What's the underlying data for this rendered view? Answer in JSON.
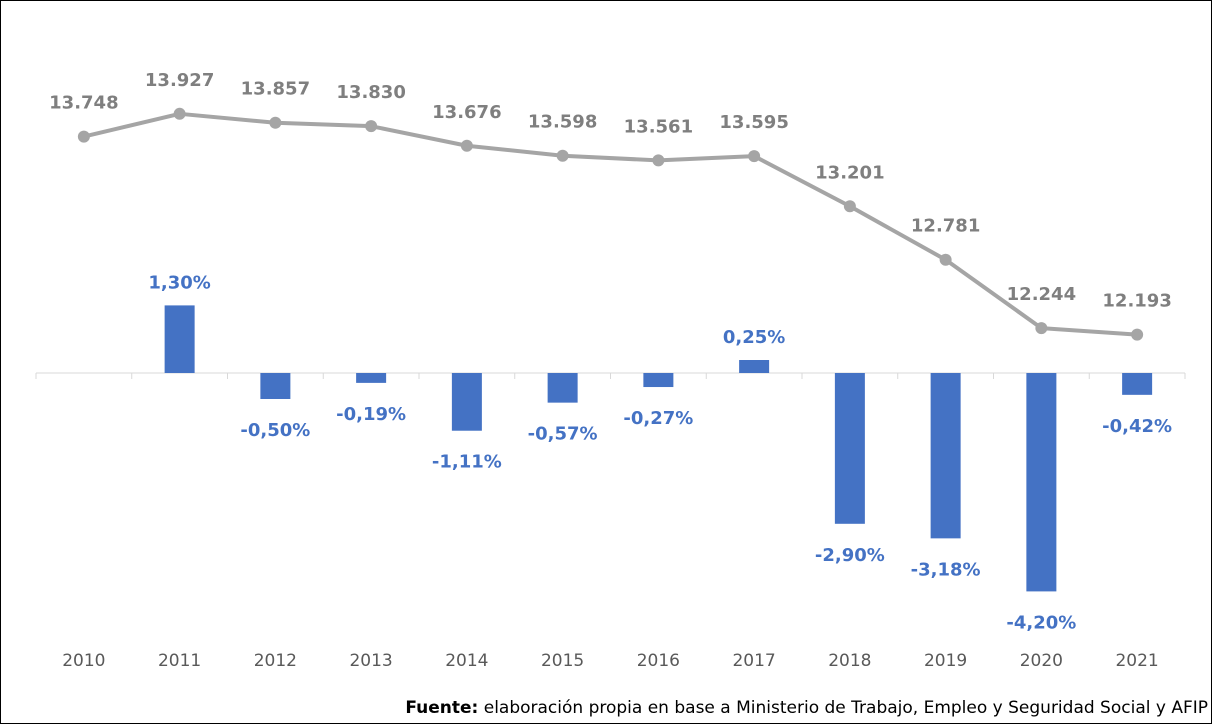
{
  "chart_data": {
    "type": "bar-line",
    "categories": [
      "2010",
      "2011",
      "2012",
      "2013",
      "2014",
      "2015",
      "2016",
      "2017",
      "2018",
      "2019",
      "2020",
      "2021"
    ],
    "series": [
      {
        "type": "bar",
        "color": "#4472c4",
        "values": [
          null,
          1.3,
          -0.5,
          -0.19,
          -1.11,
          -0.57,
          -0.27,
          0.25,
          -2.9,
          -3.18,
          -4.2,
          -0.42
        ],
        "value_labels": [
          null,
          "1,30%",
          "-0,50%",
          "-0,19%",
          "-1,11%",
          "-0,57%",
          "-0,27%",
          "0,25%",
          "-2,90%",
          "-3,18%",
          "-4,20%",
          "-0,42%"
        ]
      },
      {
        "type": "line",
        "axis": "y2",
        "color": "#a5a5a5",
        "values": [
          13748,
          13927,
          13857,
          13830,
          13676,
          13598,
          13561,
          13595,
          13201,
          12781,
          12244,
          12193
        ],
        "value_labels": [
          "13.748",
          "13.927",
          "13.857",
          "13.830",
          "13.676",
          "13.598",
          "13.561",
          "13.595",
          "13.201",
          "12.781",
          "12.244",
          "12.193"
        ]
      }
    ],
    "ylim": [
      -5,
      7
    ],
    "y2lim": [
      9850,
      14750
    ],
    "source_label": "Fuente:",
    "source": " elaboración propia en base a Ministerio de Trabajo, Empleo y Seguridad Social y AFIP"
  }
}
